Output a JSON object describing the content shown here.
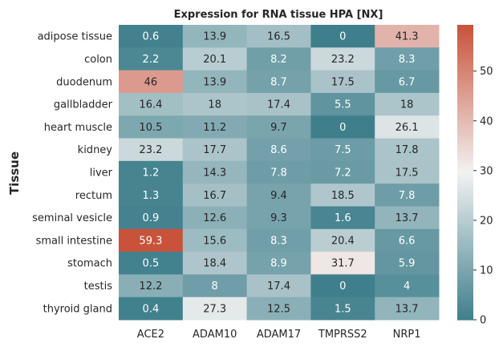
{
  "chart_data": {
    "type": "heatmap",
    "title": "Expression for RNA tissue HPA [NX]",
    "xlabel": "",
    "ylabel": "Tissue",
    "columns": [
      "ACE2",
      "ADAM10",
      "ADAM17",
      "TMPRSS2",
      "NRP1"
    ],
    "rows": [
      "adipose tissue",
      "colon",
      "duodenum",
      "gallbladder",
      "heart muscle",
      "kidney",
      "liver",
      "rectum",
      "seminal vesicle",
      "small intestine",
      "stomach",
      "testis",
      "thyroid gland"
    ],
    "values": [
      [
        0.6,
        13.9,
        16.5,
        0,
        41.3
      ],
      [
        2.2,
        20.1,
        8.2,
        23.2,
        8.3
      ],
      [
        46,
        13.9,
        8.7,
        17.5,
        6.7
      ],
      [
        16.4,
        18,
        17.4,
        5.5,
        18
      ],
      [
        10.5,
        11.2,
        9.7,
        0,
        26.1
      ],
      [
        23.2,
        17.7,
        8.6,
        7.5,
        17.8
      ],
      [
        1.2,
        14.3,
        7.8,
        7.2,
        17.5
      ],
      [
        1.3,
        16.7,
        9.4,
        18.5,
        7.8
      ],
      [
        0.9,
        12.6,
        9.3,
        1.6,
        13.7
      ],
      [
        59.3,
        15.6,
        8.3,
        20.4,
        6.6
      ],
      [
        0.5,
        18.4,
        8.9,
        31.7,
        5.9
      ],
      [
        12.2,
        8,
        17.4,
        0,
        4
      ],
      [
        0.4,
        27.3,
        12.5,
        1.5,
        13.7
      ]
    ],
    "colorbar": {
      "range": [
        0,
        59.3
      ],
      "ticks": [
        0,
        10,
        20,
        30,
        40,
        50
      ],
      "colormap": "diverging teal-white-red",
      "low_color": "#3f7f8c",
      "mid_color": "#f2f2f2",
      "high_color": "#c9523a"
    }
  }
}
